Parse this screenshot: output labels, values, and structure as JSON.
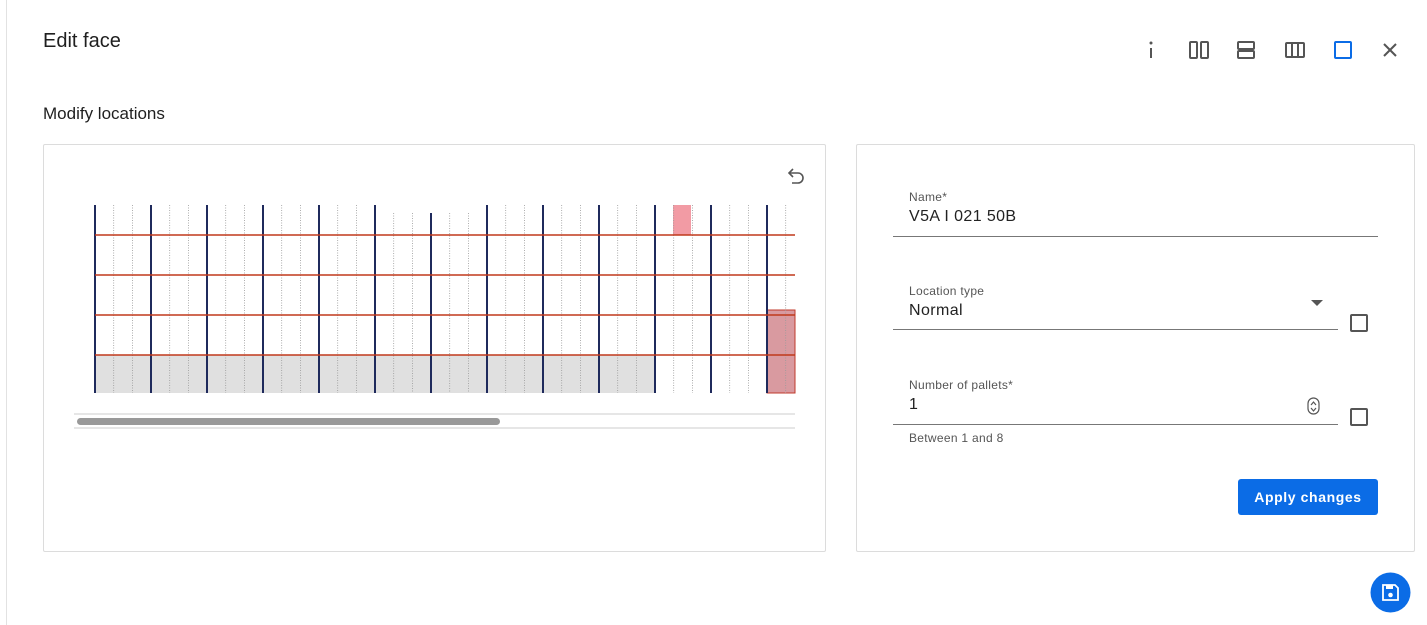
{
  "header": {
    "title": "Edit face"
  },
  "section": {
    "title": "Modify locations"
  },
  "form": {
    "name": {
      "label": "Name*",
      "value": "V5A I 021 50B"
    },
    "location_type": {
      "label": "Location type",
      "value": "Normal"
    },
    "pallets": {
      "label": "Number of pallets*",
      "value": "1",
      "helper": "Between 1 and 8"
    },
    "submit": "Apply changes"
  }
}
